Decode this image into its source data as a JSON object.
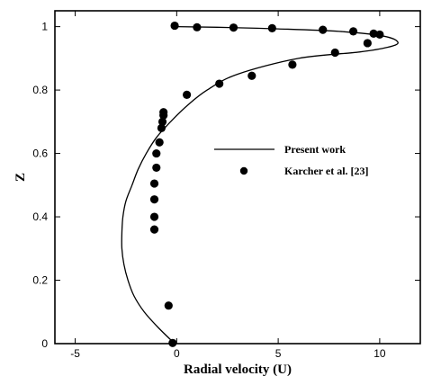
{
  "chart_data": {
    "type": "scatter",
    "xlabel": "Radial velocity (U)",
    "ylabel": "Z",
    "xlim": [
      -6,
      12
    ],
    "ylim": [
      0,
      1.05
    ],
    "x_ticks": [
      -5,
      0,
      5,
      10
    ],
    "y_ticks": [
      0,
      0.2,
      0.4,
      0.6,
      0.8,
      1
    ],
    "x_tick_labels": [
      "-5",
      "0",
      "5",
      "10"
    ],
    "y_tick_labels": [
      "0",
      "0.2",
      "0.4",
      "0.6",
      "0.8",
      "1"
    ],
    "grid": false,
    "legend_position": "center-right",
    "series": [
      {
        "name": "Present work",
        "style": "line",
        "points": [
          [
            -0.1,
            0.0
          ],
          [
            -0.9,
            0.05
          ],
          [
            -1.6,
            0.1
          ],
          [
            -2.1,
            0.15
          ],
          [
            -2.4,
            0.2
          ],
          [
            -2.6,
            0.25
          ],
          [
            -2.7,
            0.3
          ],
          [
            -2.7,
            0.35
          ],
          [
            -2.65,
            0.4
          ],
          [
            -2.5,
            0.45
          ],
          [
            -2.2,
            0.5
          ],
          [
            -1.9,
            0.55
          ],
          [
            -1.5,
            0.6
          ],
          [
            -1.0,
            0.65
          ],
          [
            -0.3,
            0.7
          ],
          [
            0.5,
            0.75
          ],
          [
            1.5,
            0.8
          ],
          [
            3.0,
            0.85
          ],
          [
            6.0,
            0.9
          ],
          [
            9.0,
            0.92
          ],
          [
            10.4,
            0.935
          ],
          [
            10.9,
            0.95
          ],
          [
            10.2,
            0.97
          ],
          [
            8.0,
            0.985
          ],
          [
            5.0,
            0.993
          ],
          [
            2.0,
            0.998
          ],
          [
            0.0,
            1.0
          ]
        ]
      },
      {
        "name": "Karcher et al. [23]",
        "style": "marker",
        "points": [
          [
            -0.2,
            0.002
          ],
          [
            -0.4,
            0.12
          ],
          [
            -1.1,
            0.36
          ],
          [
            -1.1,
            0.4
          ],
          [
            -1.1,
            0.455
          ],
          [
            -1.1,
            0.505
          ],
          [
            -1.0,
            0.555
          ],
          [
            -1.0,
            0.6
          ],
          [
            -0.85,
            0.635
          ],
          [
            -0.75,
            0.68
          ],
          [
            -0.7,
            0.7
          ],
          [
            -0.65,
            0.72
          ],
          [
            -0.65,
            0.73
          ],
          [
            0.5,
            0.785
          ],
          [
            2.1,
            0.82
          ],
          [
            3.7,
            0.845
          ],
          [
            5.7,
            0.88
          ],
          [
            7.8,
            0.918
          ],
          [
            9.4,
            0.948
          ],
          [
            9.7,
            0.978
          ],
          [
            10.0,
            0.975
          ],
          [
            8.7,
            0.985
          ],
          [
            7.2,
            0.99
          ],
          [
            4.7,
            0.995
          ],
          [
            2.8,
            0.997
          ],
          [
            1.0,
            0.998
          ],
          [
            -0.1,
            1.003
          ]
        ]
      }
    ]
  }
}
